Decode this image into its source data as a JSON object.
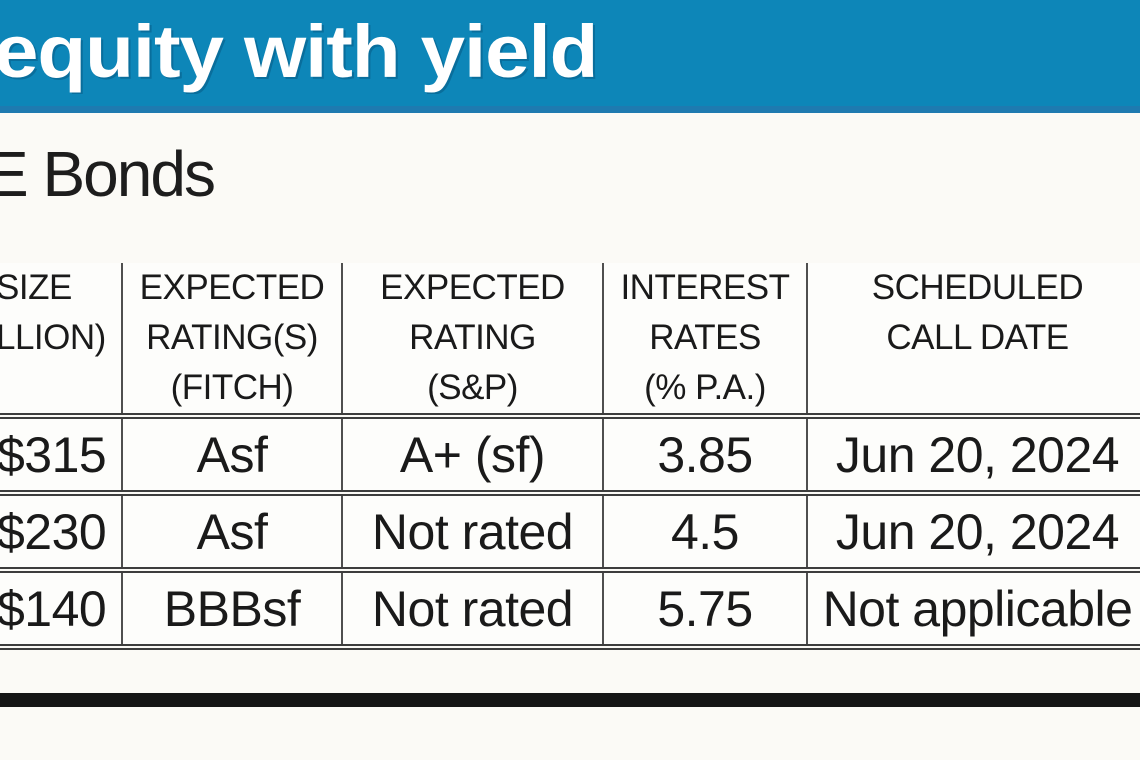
{
  "banner": {
    "headline": "equity with yield"
  },
  "section": {
    "subtitle": "E Bonds"
  },
  "table": {
    "columns": [
      {
        "id": "size",
        "header_lines": [
          "SIZE",
          "LLION)"
        ]
      },
      {
        "id": "fitch",
        "header_lines": [
          "EXPECTED",
          "RATING(S)",
          "(FITCH)"
        ]
      },
      {
        "id": "sp",
        "header_lines": [
          "EXPECTED",
          "RATING",
          "(S&P)"
        ]
      },
      {
        "id": "rate",
        "header_lines": [
          "INTEREST",
          "RATES",
          "(% P.A.)"
        ]
      },
      {
        "id": "call",
        "header_lines": [
          "SCHEDULED",
          "CALL DATE"
        ]
      }
    ],
    "rows": [
      {
        "size": "$315",
        "fitch": "Asf",
        "sp": "A+ (sf)",
        "rate": "3.85",
        "call": "Jun 20, 2024"
      },
      {
        "size": "$230",
        "fitch": "Asf",
        "sp": "Not rated",
        "rate": "4.5",
        "call": "Jun 20, 2024"
      },
      {
        "size": "$140",
        "fitch": "BBBsf",
        "sp": "Not rated",
        "rate": "5.75",
        "call": "Not applicable"
      }
    ]
  },
  "colors": {
    "banner_bg": "#0d86b8",
    "banner_edge": "#1e7ab0",
    "banner_text": "#ffffff",
    "body_text": "#1a1a1a",
    "table_rule": "#3d3d3d",
    "bottom_bar": "#151515",
    "background": "#fbfaf6"
  }
}
